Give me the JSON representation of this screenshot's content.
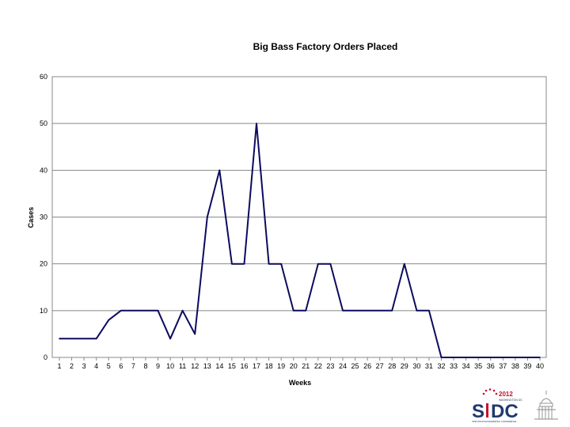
{
  "chart_data": {
    "type": "line",
    "title": "Big Bass Factory Orders Placed",
    "xlabel": "Weeks",
    "ylabel": "Cases",
    "ylim": [
      0,
      60
    ],
    "yticks": [
      "0",
      "10",
      "20",
      "30",
      "40",
      "50",
      "60"
    ],
    "x": [
      "1",
      "2",
      "3",
      "4",
      "5",
      "6",
      "7",
      "8",
      "9",
      "10",
      "11",
      "12",
      "13",
      "14",
      "15",
      "16",
      "17",
      "18",
      "19",
      "20",
      "21",
      "22",
      "23",
      "24",
      "25",
      "26",
      "27",
      "28",
      "29",
      "30",
      "31",
      "32",
      "33",
      "34",
      "35",
      "36",
      "37",
      "38",
      "39",
      "40"
    ],
    "series": [
      {
        "color": "#0b0b5e",
        "values": [
          4,
          4,
          4,
          4,
          8,
          10,
          10,
          10,
          10,
          4,
          10,
          5,
          30,
          40,
          20,
          20,
          50,
          20,
          20,
          10,
          10,
          20,
          20,
          10,
          10,
          10,
          10,
          10,
          20,
          10,
          10,
          0,
          0,
          0,
          0,
          0,
          0,
          0,
          0,
          0
        ]
      }
    ],
    "grid": "horizontal",
    "legend": "none"
  },
  "logo": {
    "year": "2012",
    "city": "WASHINGTON DC",
    "wordmark_left": "S",
    "wordmark_right": "DC",
    "tagline": "SPECTRUM ENGINEERING CONFERENCE",
    "accent_color": "#c8102e",
    "brand_color": "#1f3a6e"
  }
}
